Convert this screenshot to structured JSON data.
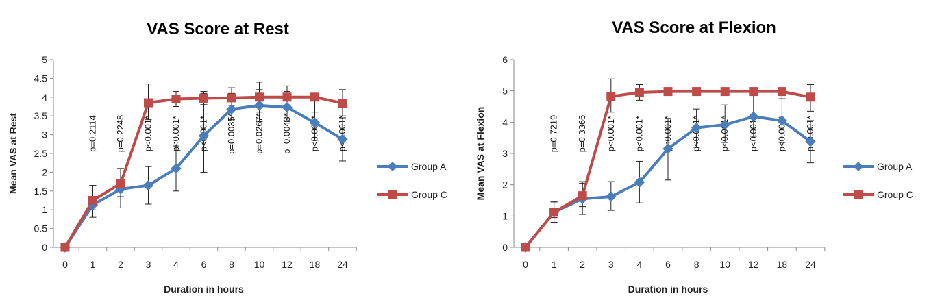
{
  "chart_data": [
    {
      "type": "line",
      "title": "VAS Score at Rest",
      "xlabel": "Duration in hours",
      "ylabel": "Mean VAS at Rest",
      "categories": [
        "0",
        "1",
        "2",
        "3",
        "4",
        "6",
        "8",
        "10",
        "12",
        "18",
        "24"
      ],
      "ylim": [
        0,
        5
      ],
      "ystep": 0.5,
      "yticks": [
        "0",
        "0.5",
        "1",
        "1.5",
        "2",
        "2.5",
        "3",
        "3.5",
        "4",
        "4.5",
        "5"
      ],
      "grid": false,
      "legend_position": "right",
      "series": [
        {
          "name": "Group A",
          "color": "#4a7ebb",
          "marker": "diamond",
          "values": [
            0,
            1.13,
            1.55,
            1.65,
            2.1,
            2.97,
            3.68,
            3.78,
            3.73,
            3.32,
            2.88
          ],
          "err_low": [
            0,
            0.8,
            1.05,
            1.15,
            1.5,
            2.0,
            3.4,
            3.35,
            3.35,
            2.85,
            2.3
          ],
          "err_high": [
            0,
            1.45,
            2.1,
            2.15,
            2.7,
            4.1,
            4.1,
            4.2,
            4.15,
            3.9,
            3.45
          ]
        },
        {
          "name": "Group C",
          "color": "#be4b48",
          "marker": "square",
          "values": [
            0,
            1.25,
            1.7,
            3.85,
            3.95,
            3.97,
            3.98,
            4.0,
            4.0,
            4.0,
            3.84
          ],
          "err_low": [
            0,
            1.0,
            1.35,
            3.4,
            3.75,
            3.8,
            3.78,
            3.6,
            3.7,
            3.6,
            3.5
          ],
          "err_high": [
            0,
            1.65,
            2.1,
            4.35,
            4.15,
            4.15,
            4.25,
            4.4,
            4.3,
            4.0,
            4.2
          ]
        }
      ],
      "annotations": [
        "",
        "p=0.2114",
        "p=0.2248",
        "p<0.001*",
        "p<0.001*",
        "p<0.001*",
        "p=0.0035*",
        "p=0.0267*",
        "p=0.0043*",
        "p<0.001*",
        "p<0.001*"
      ]
    },
    {
      "type": "line",
      "title": "VAS Score at Flexion",
      "xlabel": "Duration in hours",
      "ylabel": "Mean VAS at Flexion",
      "categories": [
        "0",
        "1",
        "2",
        "3",
        "4",
        "6",
        "8",
        "10",
        "12",
        "18",
        "24"
      ],
      "ylim": [
        0,
        6
      ],
      "ystep": 1,
      "yticks": [
        "0",
        "1",
        "2",
        "3",
        "4",
        "5",
        "6"
      ],
      "grid": false,
      "legend_position": "right",
      "series": [
        {
          "name": "Group A",
          "color": "#4a7ebb",
          "marker": "diamond",
          "values": [
            0,
            1.12,
            1.55,
            1.62,
            2.08,
            3.15,
            3.82,
            3.92,
            4.18,
            4.05,
            3.38
          ],
          "err_low": [
            0,
            0.8,
            1.05,
            1.18,
            1.42,
            2.15,
            3.2,
            3.35,
            3.55,
            3.35,
            2.7
          ],
          "err_high": [
            0,
            1.45,
            2.1,
            2.1,
            2.75,
            4.12,
            4.42,
            4.55,
            4.85,
            4.85,
            4.05
          ]
        },
        {
          "name": "Group C",
          "color": "#be4b48",
          "marker": "square",
          "values": [
            0,
            1.12,
            1.65,
            4.82,
            4.95,
            4.98,
            4.98,
            4.98,
            4.98,
            4.98,
            4.8
          ],
          "err_low": [
            0,
            0.95,
            1.3,
            4.32,
            4.7,
            4.85,
            4.85,
            4.85,
            4.85,
            4.75,
            4.35
          ],
          "err_high": [
            0,
            1.45,
            2.05,
            5.38,
            5.2,
            5.1,
            5.1,
            5.1,
            5.1,
            5.1,
            5.2
          ]
        }
      ],
      "annotations": [
        "",
        "p=0.7219",
        "p=0.3366",
        "p<0.001*",
        "p<0.001*",
        "p<0.001*",
        "p<0.001*",
        "p<0.001*",
        "p<0.001*",
        "p<0.001*",
        "p<0.001*"
      ]
    }
  ]
}
